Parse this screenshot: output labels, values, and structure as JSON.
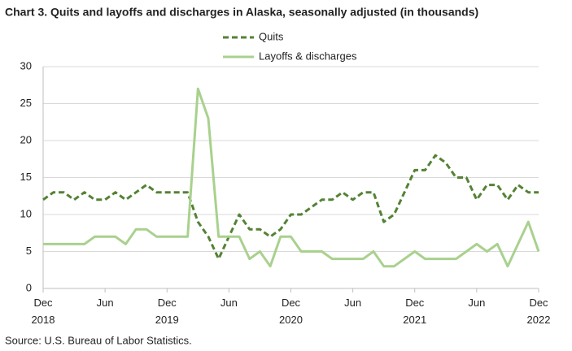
{
  "chart_data": {
    "type": "line",
    "title": "Chart 3. Quits and layoffs and discharges in Alaska, seasonally adjusted (in thousands)",
    "source": "Source: U.S. Bureau of Labor Statistics.",
    "categories": [
      "Dec\n2018",
      null,
      null,
      null,
      null,
      null,
      "Jun",
      null,
      null,
      null,
      null,
      null,
      "Dec\n2019",
      null,
      null,
      null,
      null,
      null,
      "Jun",
      null,
      null,
      null,
      null,
      null,
      "Dec\n2020",
      null,
      null,
      null,
      null,
      null,
      "Jun",
      null,
      null,
      null,
      null,
      null,
      "Dec\n2021",
      null,
      null,
      null,
      null,
      null,
      "Jun",
      null,
      null,
      null,
      null,
      null,
      "Dec\n2022"
    ],
    "series": [
      {
        "name": "Quits",
        "color": "#548235",
        "dashed": true,
        "values": [
          12,
          13,
          13,
          12,
          13,
          12,
          12,
          13,
          12,
          13,
          14,
          13,
          13,
          13,
          13,
          9,
          7,
          4,
          7,
          10,
          8,
          8,
          7,
          8,
          10,
          10,
          11,
          12,
          12,
          13,
          12,
          13,
          13,
          9,
          10,
          13,
          16,
          16,
          18,
          17,
          15,
          15,
          12,
          14,
          14,
          12,
          14,
          13,
          13
        ]
      },
      {
        "name": "Layoffs & discharges",
        "color": "#a9d18e",
        "dashed": false,
        "values": [
          6,
          6,
          6,
          6,
          6,
          7,
          7,
          7,
          6,
          8,
          8,
          7,
          7,
          7,
          7,
          27,
          23,
          7,
          7,
          7,
          4,
          5,
          3,
          7,
          7,
          5,
          5,
          5,
          4,
          4,
          4,
          4,
          5,
          3,
          3,
          4,
          5,
          4,
          4,
          4,
          4,
          5,
          6,
          5,
          6,
          3,
          6,
          9,
          5
        ]
      }
    ],
    "ylim": [
      0,
      30
    ],
    "yticks": [
      0,
      5,
      10,
      15,
      20,
      25,
      30
    ],
    "grid": true
  }
}
